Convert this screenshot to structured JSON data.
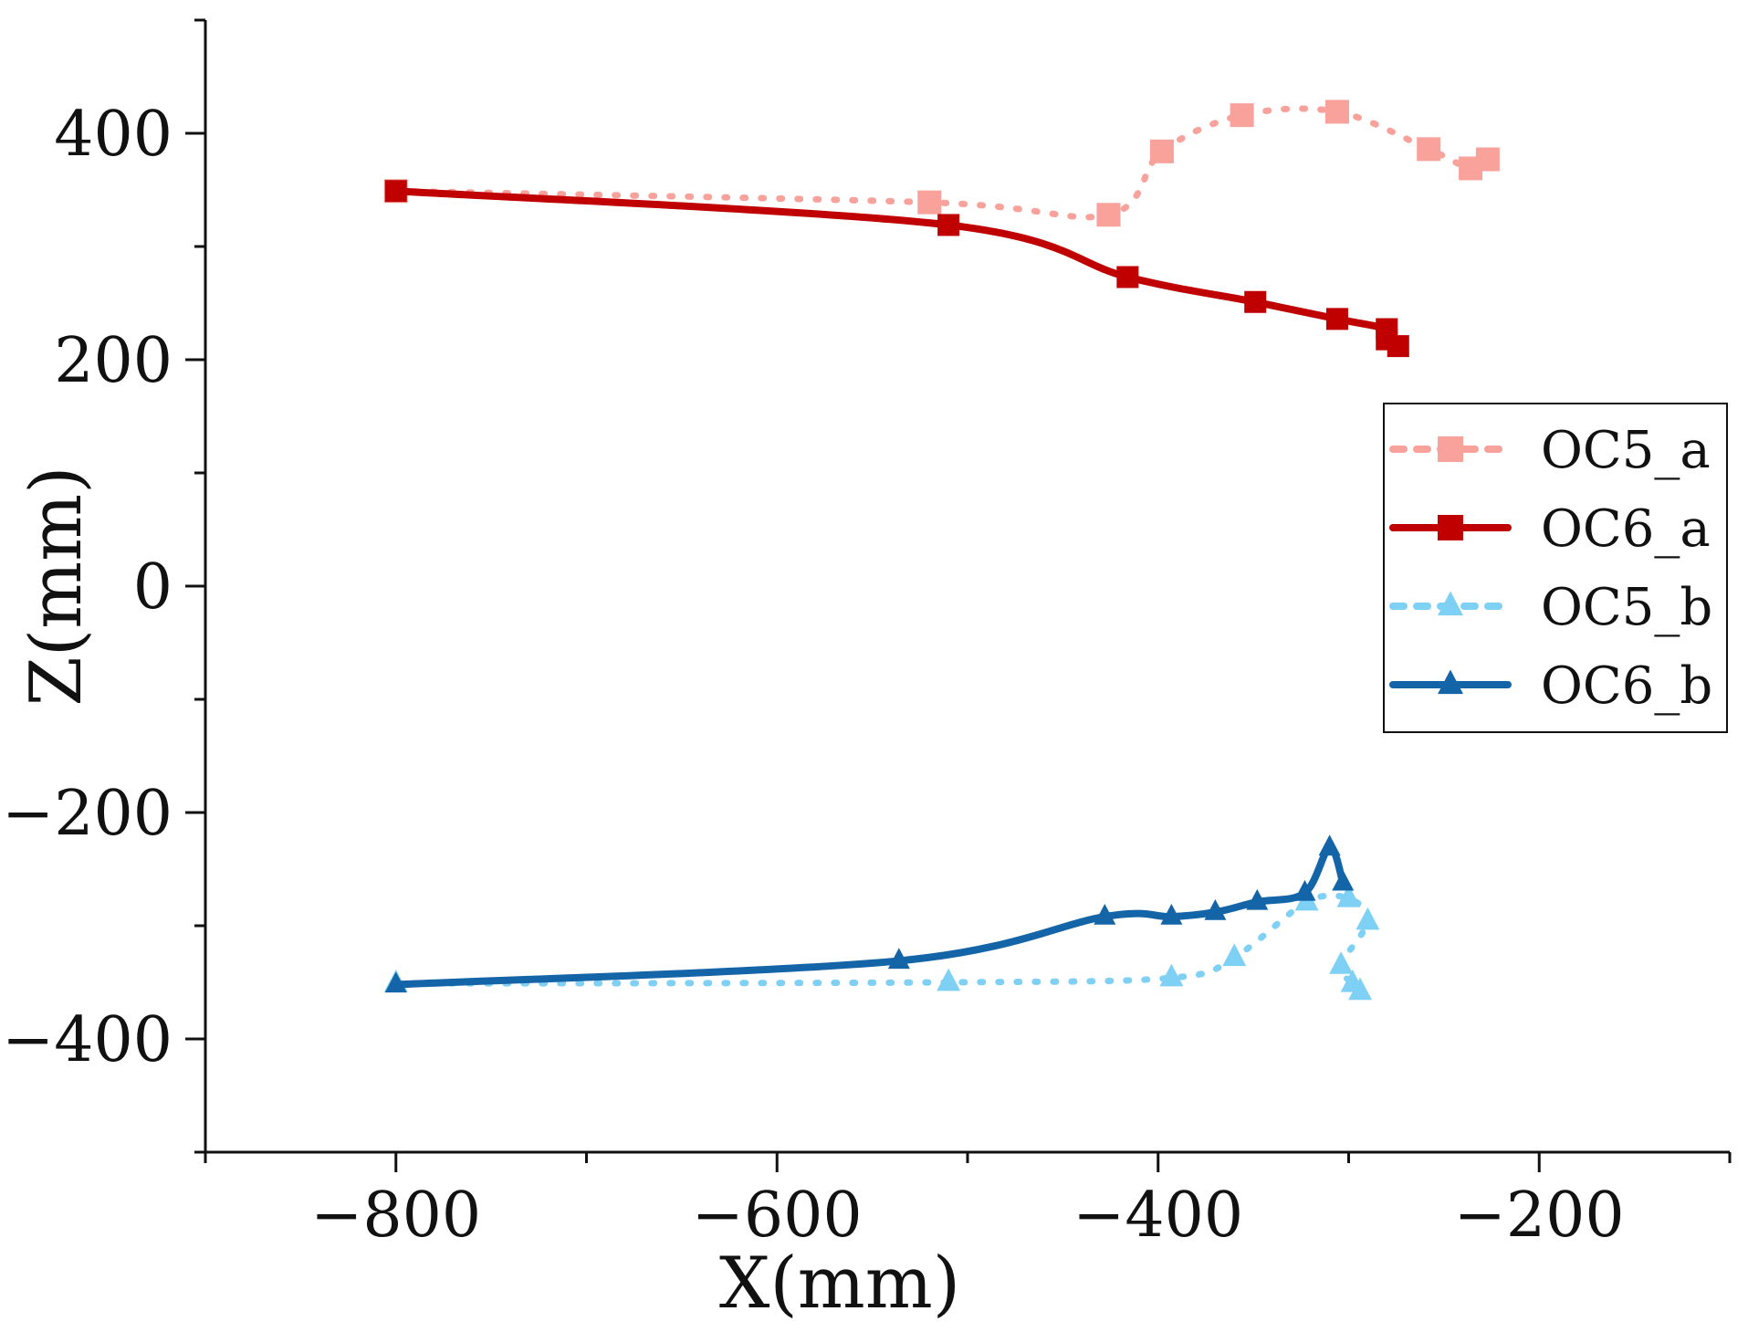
{
  "chart_data": {
    "type": "line",
    "title": "",
    "xlabel": "X(mm)",
    "ylabel": "Z(mm)",
    "xlim": [
      -900,
      -100
    ],
    "ylim": [
      -500,
      500
    ],
    "xticks": [
      -800,
      -600,
      -400,
      -200
    ],
    "yticks": [
      -400,
      -200,
      0,
      200,
      400
    ],
    "xtick_labels": [
      "−800",
      "−600",
      "−400",
      "−200"
    ],
    "ytick_labels": [
      "−400",
      "−200",
      "0",
      "200",
      "400"
    ],
    "grid": false,
    "legend_position": "right",
    "series": [
      {
        "name": "OC5_a",
        "color": "#f9a19b",
        "line_style": "dotted",
        "marker": "square",
        "x": [
          -800,
          -520,
          -426,
          -398,
          -356,
          -306,
          -258,
          -236,
          -227
        ],
        "y": [
          349,
          339,
          328,
          384,
          416,
          419,
          386,
          369,
          377
        ]
      },
      {
        "name": "OC6_a",
        "color": "#c00000",
        "line_style": "solid",
        "marker": "square",
        "x": [
          -800,
          -510,
          -416,
          -349,
          -306,
          -280,
          -280,
          -274
        ],
        "y": [
          349,
          319,
          273,
          251,
          236,
          227,
          218,
          212
        ]
      },
      {
        "name": "OC5_b",
        "color": "#7fd0f5",
        "line_style": "dotted",
        "marker": "triangle",
        "x": [
          -800,
          -510,
          -393,
          -360,
          -322,
          -300,
          -290,
          -304,
          -298,
          -294
        ],
        "y": [
          -351,
          -350,
          -346,
          -328,
          -279,
          -276,
          -296,
          -335,
          -351,
          -358
        ]
      },
      {
        "name": "OC6_b",
        "color": "#1464a8",
        "line_style": "solid",
        "marker": "triangle",
        "x": [
          -800,
          -536,
          -428,
          -393,
          -370,
          -348,
          -323,
          -310,
          -303
        ],
        "y": [
          -352,
          -331,
          -292,
          -292,
          -288,
          -279,
          -271,
          -231,
          -262
        ]
      }
    ]
  }
}
